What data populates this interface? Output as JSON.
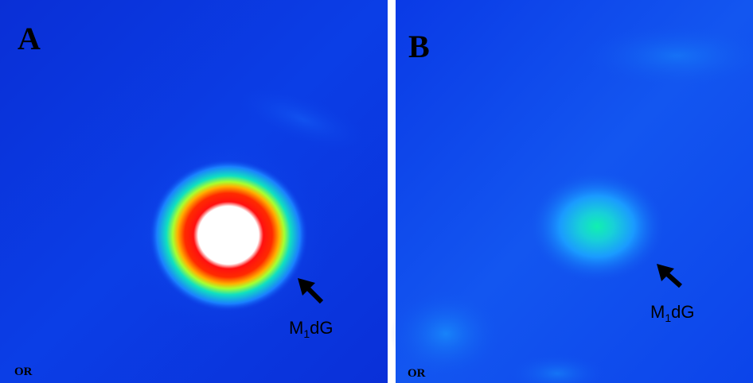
{
  "panels": [
    {
      "label": "A",
      "origin": "OR",
      "annotation": {
        "main": "M",
        "sub": "1",
        "end": "dG"
      }
    },
    {
      "label": "B",
      "origin": "OR",
      "annotation": {
        "main": "M",
        "sub": "1",
        "end": "dG"
      }
    }
  ]
}
